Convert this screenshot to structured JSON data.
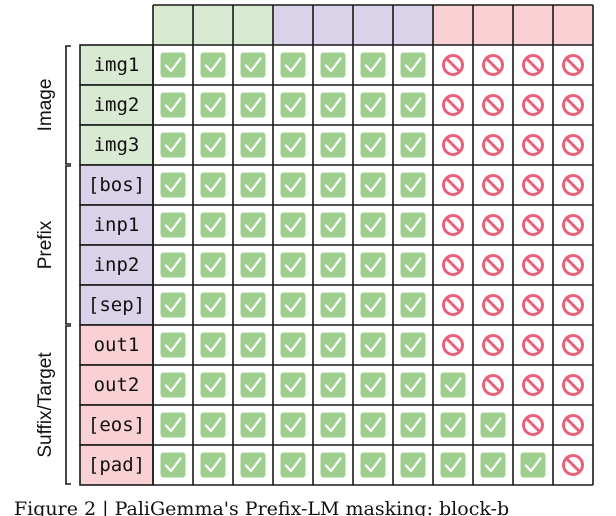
{
  "colors": {
    "image": "#d9ead3",
    "prefix": "#d9d2e9",
    "suffix": "#f9d0d3",
    "allowed_box": "#9fcf8e",
    "allowed_check": "#ffffff",
    "blocked": "#e8607a",
    "grid": "#1a1a1a"
  },
  "groups": [
    {
      "name": "Image",
      "key": "image",
      "rows": [
        "img1",
        "img2",
        "img3"
      ]
    },
    {
      "name": "Prefix",
      "key": "prefix",
      "rows": [
        "[bos]",
        "inp1",
        "inp2",
        "[sep]"
      ]
    },
    {
      "name": "Suffix/Target",
      "key": "suffix",
      "rows": [
        "out1",
        "out2",
        "[eos]",
        "[pad]"
      ]
    }
  ],
  "column_groups": [
    "image",
    "image",
    "image",
    "prefix",
    "prefix",
    "prefix",
    "prefix",
    "suffix",
    "suffix",
    "suffix",
    "suffix"
  ],
  "mask": [
    [
      1,
      1,
      1,
      1,
      1,
      1,
      1,
      0,
      0,
      0,
      0
    ],
    [
      1,
      1,
      1,
      1,
      1,
      1,
      1,
      0,
      0,
      0,
      0
    ],
    [
      1,
      1,
      1,
      1,
      1,
      1,
      1,
      0,
      0,
      0,
      0
    ],
    [
      1,
      1,
      1,
      1,
      1,
      1,
      1,
      0,
      0,
      0,
      0
    ],
    [
      1,
      1,
      1,
      1,
      1,
      1,
      1,
      0,
      0,
      0,
      0
    ],
    [
      1,
      1,
      1,
      1,
      1,
      1,
      1,
      0,
      0,
      0,
      0
    ],
    [
      1,
      1,
      1,
      1,
      1,
      1,
      1,
      0,
      0,
      0,
      0
    ],
    [
      1,
      1,
      1,
      1,
      1,
      1,
      1,
      0,
      0,
      0,
      0
    ],
    [
      1,
      1,
      1,
      1,
      1,
      1,
      1,
      1,
      0,
      0,
      0
    ],
    [
      1,
      1,
      1,
      1,
      1,
      1,
      1,
      1,
      1,
      0,
      0
    ],
    [
      1,
      1,
      1,
      1,
      1,
      1,
      1,
      1,
      1,
      1,
      0
    ]
  ],
  "icons": {
    "allowed": "check-icon",
    "blocked": "prohibited-icon"
  },
  "caption": "Figure 2 | PaliGemma's Prefix-LM masking: block-b"
}
